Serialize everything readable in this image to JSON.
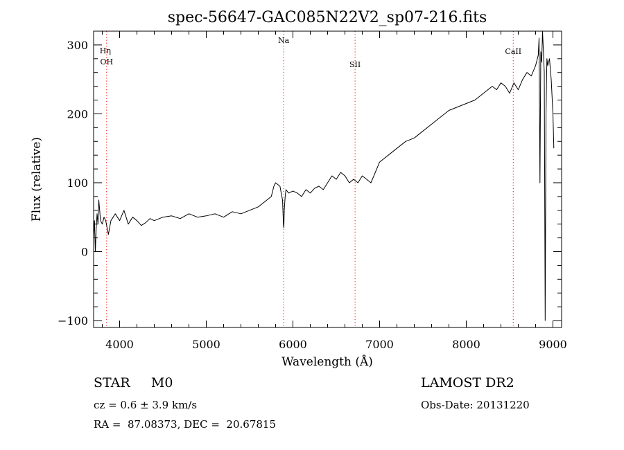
{
  "chart_data": {
    "type": "line",
    "title": "spec-56647-GAC085N22V2_sp07-216.fits",
    "xlabel": "Wavelength (Å)",
    "ylabel": "Flux (relative)",
    "xlim": [
      3700,
      9100
    ],
    "ylim": [
      -110,
      320
    ],
    "x_ticks": [
      4000,
      5000,
      6000,
      7000,
      8000,
      9000
    ],
    "y_ticks": [
      -100,
      0,
      100,
      200,
      300
    ],
    "grid": false,
    "line_color": "#000000",
    "marker_color": "#ff0000",
    "series": [
      {
        "x": [
          3700,
          3710,
          3720,
          3730,
          3740,
          3750,
          3760,
          3780,
          3800,
          3820,
          3840,
          3870,
          3900,
          3950,
          4000,
          4050,
          4100,
          4150,
          4200,
          4250,
          4300,
          4350,
          4400,
          4500,
          4600,
          4700,
          4800,
          4900,
          5000,
          5100,
          5200,
          5300,
          5400,
          5500,
          5600,
          5700,
          5750,
          5780,
          5800,
          5850,
          5880,
          5890,
          5895,
          5900,
          5910,
          5920,
          5950,
          6000,
          6050,
          6100,
          6150,
          6200,
          6250,
          6300,
          6350,
          6400,
          6450,
          6500,
          6550,
          6600,
          6650,
          6700,
          6750,
          6800,
          6850,
          6900,
          6950,
          7000,
          7100,
          7200,
          7300,
          7400,
          7500,
          7600,
          7700,
          7800,
          7900,
          8000,
          8100,
          8200,
          8300,
          8350,
          8400,
          8450,
          8500,
          8550,
          8600,
          8650,
          8700,
          8750,
          8800,
          8830,
          8840,
          8850,
          8860,
          8870,
          8880,
          8890,
          8900,
          8910,
          8920,
          8930,
          8940,
          8960,
          8980,
          9000,
          9010
        ],
        "values": [
          20,
          45,
          0,
          35,
          55,
          40,
          75,
          45,
          40,
          50,
          45,
          25,
          45,
          55,
          45,
          60,
          40,
          50,
          45,
          38,
          42,
          48,
          45,
          50,
          52,
          48,
          55,
          50,
          52,
          55,
          50,
          58,
          55,
          60,
          65,
          75,
          80,
          95,
          100,
          95,
          75,
          40,
          35,
          60,
          80,
          90,
          85,
          88,
          85,
          80,
          90,
          85,
          92,
          95,
          90,
          100,
          110,
          105,
          115,
          110,
          100,
          105,
          100,
          110,
          105,
          100,
          115,
          130,
          140,
          150,
          160,
          165,
          175,
          185,
          195,
          205,
          210,
          215,
          220,
          230,
          240,
          235,
          245,
          240,
          230,
          245,
          235,
          250,
          260,
          255,
          270,
          285,
          310,
          100,
          290,
          275,
          320,
          290,
          260,
          -100,
          200,
          280,
          270,
          280,
          250,
          200,
          150
        ]
      }
    ],
    "annotations": [
      {
        "label": "OH",
        "x": 3850,
        "y_label": 272,
        "marker": true
      },
      {
        "label": "Hη",
        "x": 3835,
        "y_label": 288,
        "marker": false
      },
      {
        "label": "Na",
        "x": 5893,
        "y_label": 303,
        "marker": true
      },
      {
        "label": "SII",
        "x": 6717,
        "y_label": 268,
        "marker": true
      },
      {
        "label": "CaII",
        "x": 8542,
        "y_label": 287,
        "marker": true
      }
    ]
  },
  "footer": {
    "star_class": "STAR     M0",
    "cz": "cz = 0.6 ± 3.9 km/s",
    "coords": "RA =  87.08373, DEC =  20.67815",
    "survey": "LAMOST DR2",
    "obs_date": "Obs-Date: 20131220"
  }
}
